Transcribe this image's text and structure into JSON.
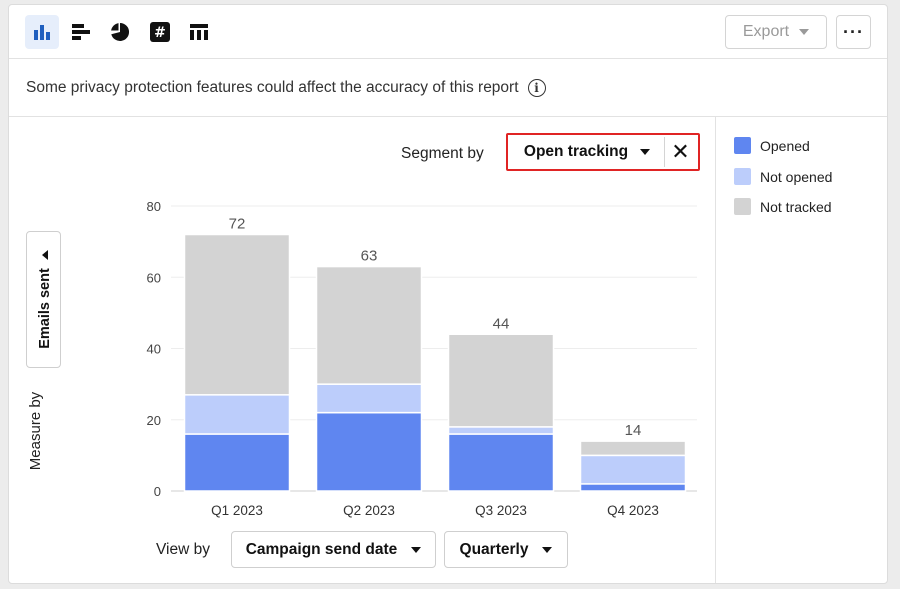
{
  "toolbar": {
    "icons": [
      "bar-chart-icon",
      "horizontal-bar-icon",
      "pie-chart-icon",
      "number-icon",
      "table-icon"
    ],
    "export_label": "Export",
    "more_label": "···"
  },
  "notice": {
    "text": "Some privacy protection features could affect the accuracy of this report",
    "info_glyph": "i"
  },
  "segment": {
    "label": "Segment by",
    "value": "Open tracking",
    "clear_glyph": "✕"
  },
  "measure": {
    "label": "Measure by",
    "value": "Emails sent"
  },
  "view": {
    "label": "View by",
    "dimension": "Campaign send date",
    "granularity": "Quarterly"
  },
  "colors": {
    "opened": "#5f86f0",
    "not_opened": "#bccdfb",
    "not_tracked": "#d3d3d3",
    "accent": "#1f5fbf",
    "highlight": "#e02424"
  },
  "chart_data": {
    "type": "bar",
    "stacked": true,
    "categories": [
      "Q1 2023",
      "Q2 2023",
      "Q3 2023",
      "Q4 2023"
    ],
    "series": [
      {
        "name": "Opened",
        "values": [
          16,
          22,
          16,
          2
        ]
      },
      {
        "name": "Not opened",
        "values": [
          11,
          8,
          2,
          8
        ]
      },
      {
        "name": "Not tracked",
        "values": [
          45,
          33,
          26,
          4
        ]
      }
    ],
    "totals": [
      72,
      63,
      44,
      14
    ],
    "yticks": [
      0,
      20,
      40,
      60,
      80
    ],
    "ylim": [
      0,
      80
    ],
    "grid": true,
    "legend_position": "right"
  }
}
